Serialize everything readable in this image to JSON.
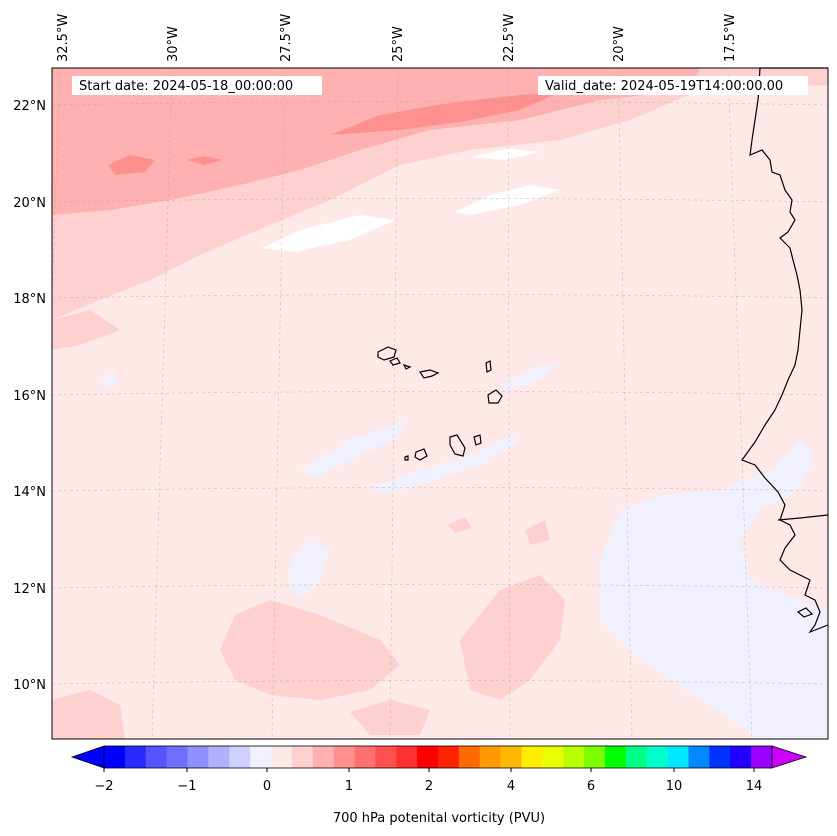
{
  "map": {
    "header": {
      "start_date": "Start date: 2024-05-18_00:00:00",
      "valid_date": "Valid_date: 2024-05-19T14:00:00.00"
    },
    "longitude_labels": [
      "32.5°W",
      "30°W",
      "27.5°W",
      "25°W",
      "22.5°W",
      "20°W",
      "17.5°W"
    ],
    "latitude_labels": [
      "22°N",
      "20°N",
      "18°N",
      "16°N",
      "14°N",
      "12°N",
      "10°N"
    ],
    "colorbar": {
      "label": "700 hPa potenital vorticity (PVU)",
      "tick_labels": [
        "−2",
        "−1",
        "0",
        "1",
        "2",
        "4",
        "6",
        "10",
        "14"
      ],
      "colors": [
        "#0000ff",
        "#2a2aff",
        "#5555ff",
        "#7070ff",
        "#9090ff",
        "#b0b0ff",
        "#d0d0ff",
        "#f0f0ff",
        "#ffe8e8",
        "#ffd0d0",
        "#ffb0b0",
        "#ff9090",
        "#ff7070",
        "#ff5050",
        "#ff3030",
        "#ff0000",
        "#ff2200",
        "#ff6a00",
        "#ff9a00",
        "#ffb800",
        "#ffee00",
        "#e8ff00",
        "#b8ff00",
        "#7cff00",
        "#00ff00",
        "#00ff88",
        "#00ffcc",
        "#00e8ff",
        "#0088ff",
        "#0033ff",
        "#2200ff",
        "#9900ff"
      ],
      "extend_low_color": "#0000ff",
      "extend_high_color": "#cc00ff"
    },
    "fill_colors": {
      "background": "#ffe8e8",
      "light_pink": "#ffd0d0",
      "mid_pink": "#ffb0b0",
      "dark_pink": "#ff9090",
      "lavender": "#f0f0ff",
      "white": "#ffffff"
    }
  }
}
